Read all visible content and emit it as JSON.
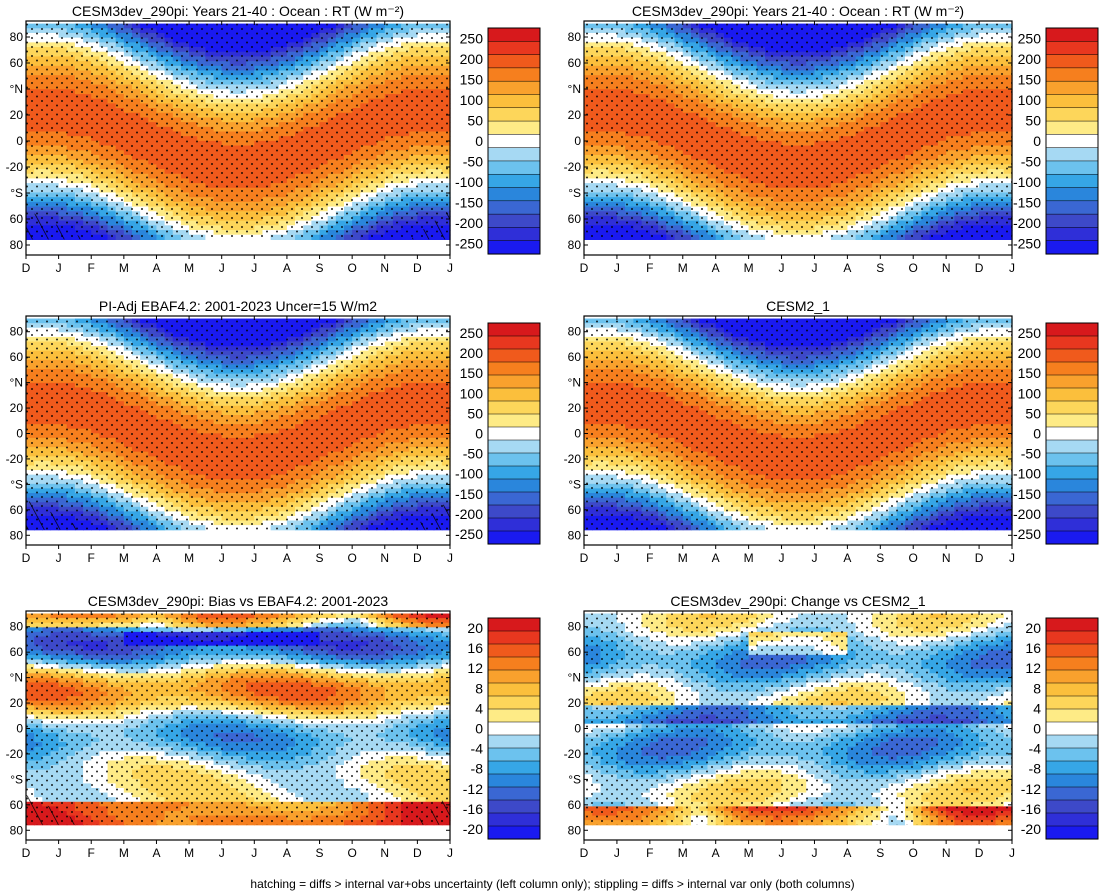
{
  "footer": "hatching = diffs > internal var+obs uncertainty (left column only); stippling = diffs > internal var only (both columns)",
  "months": [
    "D",
    "J",
    "F",
    "M",
    "A",
    "M",
    "J",
    "J",
    "A",
    "S",
    "O",
    "N",
    "D",
    "J"
  ],
  "lat_labels": [
    "80",
    "60",
    "°N",
    "20",
    "0",
    "-20",
    "°S",
    "60",
    "80"
  ],
  "scale_main": {
    "labels": [
      "250",
      "200",
      "150",
      "100",
      "50",
      "0",
      "-50",
      "-100",
      "-150",
      "-200",
      "-250"
    ],
    "colors": [
      "#d7191c",
      "#e8371f",
      "#f05a1c",
      "#f67f1e",
      "#f9a12d",
      "#fbbf3c",
      "#fdd65a",
      "#feeb86",
      "#ffffff",
      "#a6d9f3",
      "#6cc2ee",
      "#36a6e6",
      "#2a86dc",
      "#3a67d3",
      "#3d49c9",
      "#2f2fd8",
      "#1a1af0"
    ]
  },
  "scale_diff": {
    "labels": [
      "20",
      "16",
      "12",
      "8",
      "4",
      "0",
      "-4",
      "-8",
      "-12",
      "-16",
      "-20"
    ],
    "colors": [
      "#d7191c",
      "#e8371f",
      "#f05a1c",
      "#f67f1e",
      "#f9a12d",
      "#fbbf3c",
      "#fdd65a",
      "#feeb86",
      "#ffffff",
      "#a6d9f3",
      "#6cc2ee",
      "#36a6e6",
      "#2a86dc",
      "#3a67d3",
      "#3d49c9",
      "#2f2fd8",
      "#1a1af0"
    ]
  },
  "chart_data": [
    {
      "type": "heatmap",
      "title": "CESM3dev_290pi: Years 21-40 : Ocean : RT (W m⁻²)",
      "field": "rt",
      "hatch": true,
      "scale": "main",
      "x": [
        "D",
        "J",
        "F",
        "M",
        "A",
        "M",
        "J",
        "J",
        "A",
        "S",
        "O",
        "N",
        "D",
        "J"
      ],
      "ylim": [
        -90,
        90
      ],
      "zlim": [
        -250,
        250
      ]
    },
    {
      "type": "heatmap",
      "title": "CESM3dev_290pi: Years 21-40 : Ocean : RT (W m⁻²)",
      "field": "rt",
      "hatch": false,
      "scale": "main",
      "x": [
        "D",
        "J",
        "F",
        "M",
        "A",
        "M",
        "J",
        "J",
        "A",
        "S",
        "O",
        "N",
        "D",
        "J"
      ],
      "ylim": [
        -90,
        90
      ],
      "zlim": [
        -250,
        250
      ]
    },
    {
      "type": "heatmap",
      "title": "PI-Adj EBAF4.2: 2001-2023 Uncer=15 W/m2",
      "field": "rt",
      "hatch": true,
      "scale": "main",
      "x": [
        "D",
        "J",
        "F",
        "M",
        "A",
        "M",
        "J",
        "J",
        "A",
        "S",
        "O",
        "N",
        "D",
        "J"
      ],
      "ylim": [
        -90,
        90
      ],
      "zlim": [
        -250,
        250
      ]
    },
    {
      "type": "heatmap",
      "title": "CESM2_1",
      "field": "rt",
      "hatch": false,
      "scale": "main",
      "x": [
        "D",
        "J",
        "F",
        "M",
        "A",
        "M",
        "J",
        "J",
        "A",
        "S",
        "O",
        "N",
        "D",
        "J"
      ],
      "ylim": [
        -90,
        90
      ],
      "zlim": [
        -250,
        250
      ]
    },
    {
      "type": "heatmap",
      "title": "CESM3dev_290pi: Bias vs EBAF4.2: 2001-2023",
      "field": "bias",
      "hatch": true,
      "scale": "diff",
      "x": [
        "D",
        "J",
        "F",
        "M",
        "A",
        "M",
        "J",
        "J",
        "A",
        "S",
        "O",
        "N",
        "D",
        "J"
      ],
      "ylim": [
        -90,
        90
      ],
      "zlim": [
        -20,
        20
      ]
    },
    {
      "type": "heatmap",
      "title": "CESM3dev_290pi: Change vs CESM2_1",
      "field": "change",
      "hatch": false,
      "scale": "diff",
      "x": [
        "D",
        "J",
        "F",
        "M",
        "A",
        "M",
        "J",
        "J",
        "A",
        "S",
        "O",
        "N",
        "D",
        "J"
      ],
      "ylim": [
        -90,
        90
      ],
      "zlim": [
        -20,
        20
      ]
    }
  ]
}
